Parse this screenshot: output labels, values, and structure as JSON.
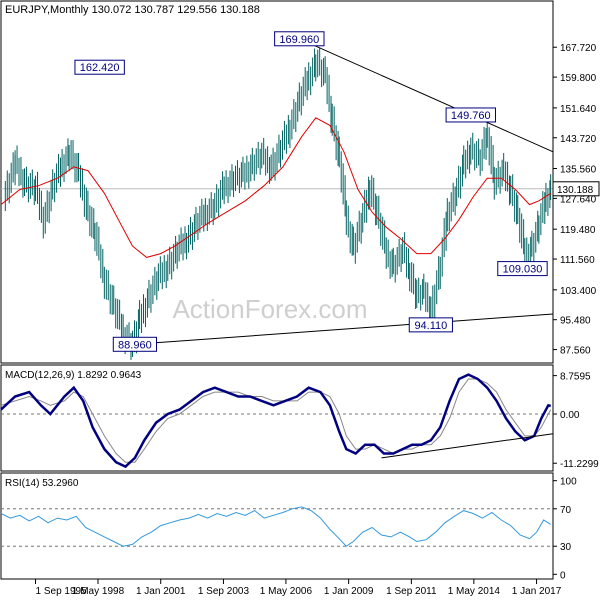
{
  "chart_data": {
    "type": "candlestick",
    "header": "EURJPY,Monthly  130.072 130.787 129.556 130.188",
    "watermark": "ActionForex.com",
    "x_ticks": [
      "1 Sep 1995",
      "1 May 1998",
      "1 Jan 2001",
      "1 Sep 2003",
      "1 May 2006",
      "1 Jan 2009",
      "1 Sep 2011",
      "1 May 2014",
      "1 Jan 2017"
    ],
    "x_tick_years": [
      1995.67,
      1998.33,
      2001.0,
      2003.67,
      2006.33,
      2009.0,
      2011.67,
      2014.33,
      2017.0
    ],
    "x_range": [
      1994.2,
      2017.7
    ],
    "price": {
      "y_range": [
        84.0,
        176.0
      ],
      "y_ticks": [
        "167.720",
        "159.800",
        "151.640",
        "143.720",
        "135.560",
        "127.640",
        "119.480",
        "111.560",
        "103.400",
        "95.480",
        "87.560"
      ],
      "y_tick_values": [
        167.72,
        159.8,
        151.64,
        143.72,
        135.56,
        127.64,
        119.48,
        111.56,
        103.4,
        95.48,
        87.56
      ],
      "last_price_label": "130.188",
      "last_price": 130.188,
      "close_series": [
        [
          1994.3,
          128
        ],
        [
          1994.8,
          137
        ],
        [
          1995.2,
          132
        ],
        [
          1995.67,
          130
        ],
        [
          1996.0,
          122
        ],
        [
          1996.4,
          131
        ],
        [
          1996.8,
          137
        ],
        [
          1997.1,
          140
        ],
        [
          1997.5,
          134
        ],
        [
          1997.9,
          124
        ],
        [
          1998.2,
          118
        ],
        [
          1998.6,
          106
        ],
        [
          1999.0,
          99
        ],
        [
          1999.4,
          92
        ],
        [
          1999.8,
          89
        ],
        [
          2000.1,
          96
        ],
        [
          2000.5,
          102
        ],
        [
          2000.9,
          107
        ],
        [
          2001.3,
          110
        ],
        [
          2001.7,
          114
        ],
        [
          2002.1,
          117
        ],
        [
          2002.5,
          121
        ],
        [
          2002.9,
          124
        ],
        [
          2003.3,
          126
        ],
        [
          2003.7,
          131
        ],
        [
          2004.1,
          133
        ],
        [
          2004.5,
          134
        ],
        [
          2004.9,
          137
        ],
        [
          2005.3,
          139
        ],
        [
          2005.7,
          136
        ],
        [
          2006.1,
          141
        ],
        [
          2006.5,
          147
        ],
        [
          2006.9,
          154
        ],
        [
          2007.3,
          160
        ],
        [
          2007.6,
          164
        ],
        [
          2008.0,
          160
        ],
        [
          2008.3,
          148
        ],
        [
          2008.6,
          138
        ],
        [
          2008.9,
          122
        ],
        [
          2009.2,
          115
        ],
        [
          2009.6,
          123
        ],
        [
          2009.9,
          131
        ],
        [
          2010.2,
          124
        ],
        [
          2010.6,
          113
        ],
        [
          2010.9,
          110
        ],
        [
          2011.3,
          114
        ],
        [
          2011.6,
          108
        ],
        [
          2011.9,
          102
        ],
        [
          2012.2,
          103
        ],
        [
          2012.5,
          98
        ],
        [
          2012.9,
          110
        ],
        [
          2013.2,
          124
        ],
        [
          2013.6,
          130
        ],
        [
          2013.9,
          137
        ],
        [
          2014.2,
          141
        ],
        [
          2014.6,
          138
        ],
        [
          2014.9,
          145
        ],
        [
          2015.2,
          132
        ],
        [
          2015.6,
          135
        ],
        [
          2015.9,
          130
        ],
        [
          2016.2,
          123
        ],
        [
          2016.5,
          113
        ],
        [
          2016.8,
          115
        ],
        [
          2017.1,
          121
        ],
        [
          2017.4,
          128
        ],
        [
          2017.6,
          130
        ]
      ],
      "ma_series": [
        [
          1994.2,
          126
        ],
        [
          1995.0,
          130
        ],
        [
          1995.8,
          131
        ],
        [
          1996.6,
          133
        ],
        [
          1997.3,
          136
        ],
        [
          1997.9,
          135
        ],
        [
          1998.6,
          129
        ],
        [
          1999.2,
          122
        ],
        [
          1999.8,
          115
        ],
        [
          2000.4,
          112
        ],
        [
          2001.0,
          113
        ],
        [
          2001.6,
          115
        ],
        [
          2002.3,
          118
        ],
        [
          2003.0,
          121
        ],
        [
          2003.8,
          124
        ],
        [
          2004.6,
          127
        ],
        [
          2005.4,
          131
        ],
        [
          2006.2,
          136
        ],
        [
          2007.0,
          144
        ],
        [
          2007.6,
          149
        ],
        [
          2008.2,
          147
        ],
        [
          2008.8,
          140
        ],
        [
          2009.4,
          130
        ],
        [
          2010.0,
          124
        ],
        [
          2010.6,
          120
        ],
        [
          2011.2,
          117
        ],
        [
          2011.9,
          113
        ],
        [
          2012.5,
          113
        ],
        [
          2013.1,
          117
        ],
        [
          2013.7,
          122
        ],
        [
          2014.3,
          128
        ],
        [
          2014.9,
          133
        ],
        [
          2015.5,
          133
        ],
        [
          2016.1,
          130
        ],
        [
          2016.7,
          126
        ],
        [
          2017.1,
          127
        ],
        [
          2017.6,
          129
        ]
      ],
      "trendlines": [
        {
          "from": [
            2006.9,
            169.96
          ],
          "to": [
            2017.7,
            140.0
          ]
        },
        {
          "from": [
            1999.9,
            88.96
          ],
          "to": [
            2017.7,
            97.0
          ]
        }
      ],
      "annotations": [
        {
          "label": "162.420",
          "x": 1998.4,
          "y": 162.42
        },
        {
          "label": "169.960",
          "x": 2006.9,
          "y": 169.96
        },
        {
          "label": "149.760",
          "x": 2014.2,
          "y": 149.76
        },
        {
          "label": "109.030",
          "x": 2016.4,
          "y": 109.03
        },
        {
          "label": "94.110",
          "x": 2012.5,
          "y": 94.11
        },
        {
          "label": "88.960",
          "x": 1999.9,
          "y": 88.96
        }
      ]
    },
    "macd": {
      "label": "MACD(12,26,9) 1.8292 0.9643",
      "y_range": [
        -13.0,
        10.5
      ],
      "y_ticks": [
        "8.7595",
        "0.00",
        "-11.2299"
      ],
      "y_tick_values": [
        8.7595,
        0.0,
        -11.2299
      ],
      "macd_series": [
        [
          1994.2,
          1
        ],
        [
          1994.8,
          4
        ],
        [
          1995.4,
          5
        ],
        [
          1995.9,
          2
        ],
        [
          1996.3,
          0
        ],
        [
          1996.9,
          4
        ],
        [
          1997.3,
          6
        ],
        [
          1997.7,
          3
        ],
        [
          1998.1,
          -3
        ],
        [
          1998.6,
          -8
        ],
        [
          1999.1,
          -11
        ],
        [
          1999.5,
          -12
        ],
        [
          1999.9,
          -10
        ],
        [
          2000.3,
          -6
        ],
        [
          2000.8,
          -2
        ],
        [
          2001.3,
          0
        ],
        [
          2001.8,
          1
        ],
        [
          2002.3,
          3
        ],
        [
          2002.8,
          5
        ],
        [
          2003.3,
          6
        ],
        [
          2003.8,
          5
        ],
        [
          2004.3,
          4
        ],
        [
          2004.8,
          4
        ],
        [
          2005.3,
          3
        ],
        [
          2005.8,
          2
        ],
        [
          2006.3,
          3
        ],
        [
          2006.8,
          4
        ],
        [
          2007.3,
          6
        ],
        [
          2007.8,
          5
        ],
        [
          2008.2,
          2
        ],
        [
          2008.6,
          -4
        ],
        [
          2008.9,
          -8
        ],
        [
          2009.3,
          -9
        ],
        [
          2009.7,
          -7
        ],
        [
          2010.1,
          -7
        ],
        [
          2010.5,
          -9
        ],
        [
          2010.9,
          -9
        ],
        [
          2011.3,
          -8
        ],
        [
          2011.7,
          -7
        ],
        [
          2012.1,
          -7
        ],
        [
          2012.5,
          -6
        ],
        [
          2012.9,
          -3
        ],
        [
          2013.3,
          3
        ],
        [
          2013.7,
          8
        ],
        [
          2014.1,
          9
        ],
        [
          2014.5,
          8
        ],
        [
          2014.9,
          6
        ],
        [
          2015.3,
          3
        ],
        [
          2015.7,
          -1
        ],
        [
          2016.1,
          -4
        ],
        [
          2016.5,
          -6
        ],
        [
          2016.9,
          -5
        ],
        [
          2017.2,
          -1
        ],
        [
          2017.5,
          2
        ],
        [
          2017.6,
          1.83
        ]
      ],
      "signal_series": [
        [
          1994.2,
          2
        ],
        [
          1994.8,
          3
        ],
        [
          1995.4,
          4
        ],
        [
          1995.9,
          3
        ],
        [
          1996.3,
          2
        ],
        [
          1996.9,
          3
        ],
        [
          1997.3,
          5
        ],
        [
          1997.7,
          4
        ],
        [
          1998.1,
          0
        ],
        [
          1998.6,
          -5
        ],
        [
          1999.1,
          -9
        ],
        [
          1999.5,
          -11
        ],
        [
          1999.9,
          -11
        ],
        [
          2000.3,
          -8
        ],
        [
          2000.8,
          -4
        ],
        [
          2001.3,
          -1
        ],
        [
          2001.8,
          0
        ],
        [
          2002.3,
          2
        ],
        [
          2002.8,
          4
        ],
        [
          2003.3,
          5
        ],
        [
          2003.8,
          5
        ],
        [
          2004.3,
          5
        ],
        [
          2004.8,
          4
        ],
        [
          2005.3,
          4
        ],
        [
          2005.8,
          3
        ],
        [
          2006.3,
          3
        ],
        [
          2006.8,
          3
        ],
        [
          2007.3,
          5
        ],
        [
          2007.8,
          5
        ],
        [
          2008.2,
          4
        ],
        [
          2008.6,
          0
        ],
        [
          2008.9,
          -5
        ],
        [
          2009.3,
          -8
        ],
        [
          2009.7,
          -8
        ],
        [
          2010.1,
          -7
        ],
        [
          2010.5,
          -8
        ],
        [
          2010.9,
          -9
        ],
        [
          2011.3,
          -8
        ],
        [
          2011.7,
          -8
        ],
        [
          2012.1,
          -7
        ],
        [
          2012.5,
          -7
        ],
        [
          2012.9,
          -5
        ],
        [
          2013.3,
          -1
        ],
        [
          2013.7,
          5
        ],
        [
          2014.1,
          8
        ],
        [
          2014.5,
          8
        ],
        [
          2014.9,
          7
        ],
        [
          2015.3,
          5
        ],
        [
          2015.7,
          1
        ],
        [
          2016.1,
          -2
        ],
        [
          2016.5,
          -5
        ],
        [
          2016.9,
          -5
        ],
        [
          2017.2,
          -3
        ],
        [
          2017.5,
          0
        ],
        [
          2017.6,
          0.96
        ]
      ],
      "trendline": {
        "from": [
          2010.4,
          -10.0
        ],
        "to": [
          2017.7,
          -4.5
        ]
      }
    },
    "rsi": {
      "label": "RSI(14) 53.2960",
      "y_range": [
        -5,
        105
      ],
      "y_ticks": [
        "100",
        "70",
        "30",
        "0"
      ],
      "y_tick_values": [
        100,
        70,
        30,
        0
      ],
      "levels": [
        70,
        30
      ],
      "series": [
        [
          1994.2,
          65
        ],
        [
          1994.6,
          60
        ],
        [
          1995.0,
          63
        ],
        [
          1995.4,
          57
        ],
        [
          1995.8,
          62
        ],
        [
          1996.2,
          55
        ],
        [
          1996.6,
          60
        ],
        [
          1997.0,
          58
        ],
        [
          1997.4,
          62
        ],
        [
          1997.8,
          50
        ],
        [
          1998.2,
          45
        ],
        [
          1998.6,
          40
        ],
        [
          1999.0,
          35
        ],
        [
          1999.4,
          30
        ],
        [
          1999.8,
          32
        ],
        [
          2000.2,
          40
        ],
        [
          2000.6,
          45
        ],
        [
          2001.0,
          52
        ],
        [
          2001.4,
          55
        ],
        [
          2001.8,
          58
        ],
        [
          2002.2,
          60
        ],
        [
          2002.6,
          64
        ],
        [
          2003.0,
          60
        ],
        [
          2003.4,
          65
        ],
        [
          2003.8,
          62
        ],
        [
          2004.2,
          66
        ],
        [
          2004.6,
          63
        ],
        [
          2005.0,
          68
        ],
        [
          2005.4,
          60
        ],
        [
          2005.8,
          63
        ],
        [
          2006.2,
          66
        ],
        [
          2006.6,
          70
        ],
        [
          2007.0,
          72
        ],
        [
          2007.4,
          68
        ],
        [
          2007.8,
          60
        ],
        [
          2008.2,
          48
        ],
        [
          2008.6,
          38
        ],
        [
          2008.9,
          30
        ],
        [
          2009.2,
          35
        ],
        [
          2009.6,
          45
        ],
        [
          2010.0,
          50
        ],
        [
          2010.4,
          42
        ],
        [
          2010.8,
          40
        ],
        [
          2011.2,
          45
        ],
        [
          2011.6,
          40
        ],
        [
          2011.9,
          35
        ],
        [
          2012.3,
          37
        ],
        [
          2012.7,
          45
        ],
        [
          2013.1,
          55
        ],
        [
          2013.5,
          62
        ],
        [
          2013.9,
          68
        ],
        [
          2014.3,
          65
        ],
        [
          2014.7,
          60
        ],
        [
          2015.1,
          66
        ],
        [
          2015.5,
          58
        ],
        [
          2015.9,
          52
        ],
        [
          2016.3,
          42
        ],
        [
          2016.7,
          38
        ],
        [
          2017.0,
          45
        ],
        [
          2017.3,
          58
        ],
        [
          2017.6,
          53.3
        ]
      ]
    },
    "colors": {
      "ma": "#e00000",
      "macd": "#000080",
      "signal": "#888888",
      "rsi": "#3399dd",
      "candle": "#006060",
      "trendline": "#000000"
    }
  }
}
